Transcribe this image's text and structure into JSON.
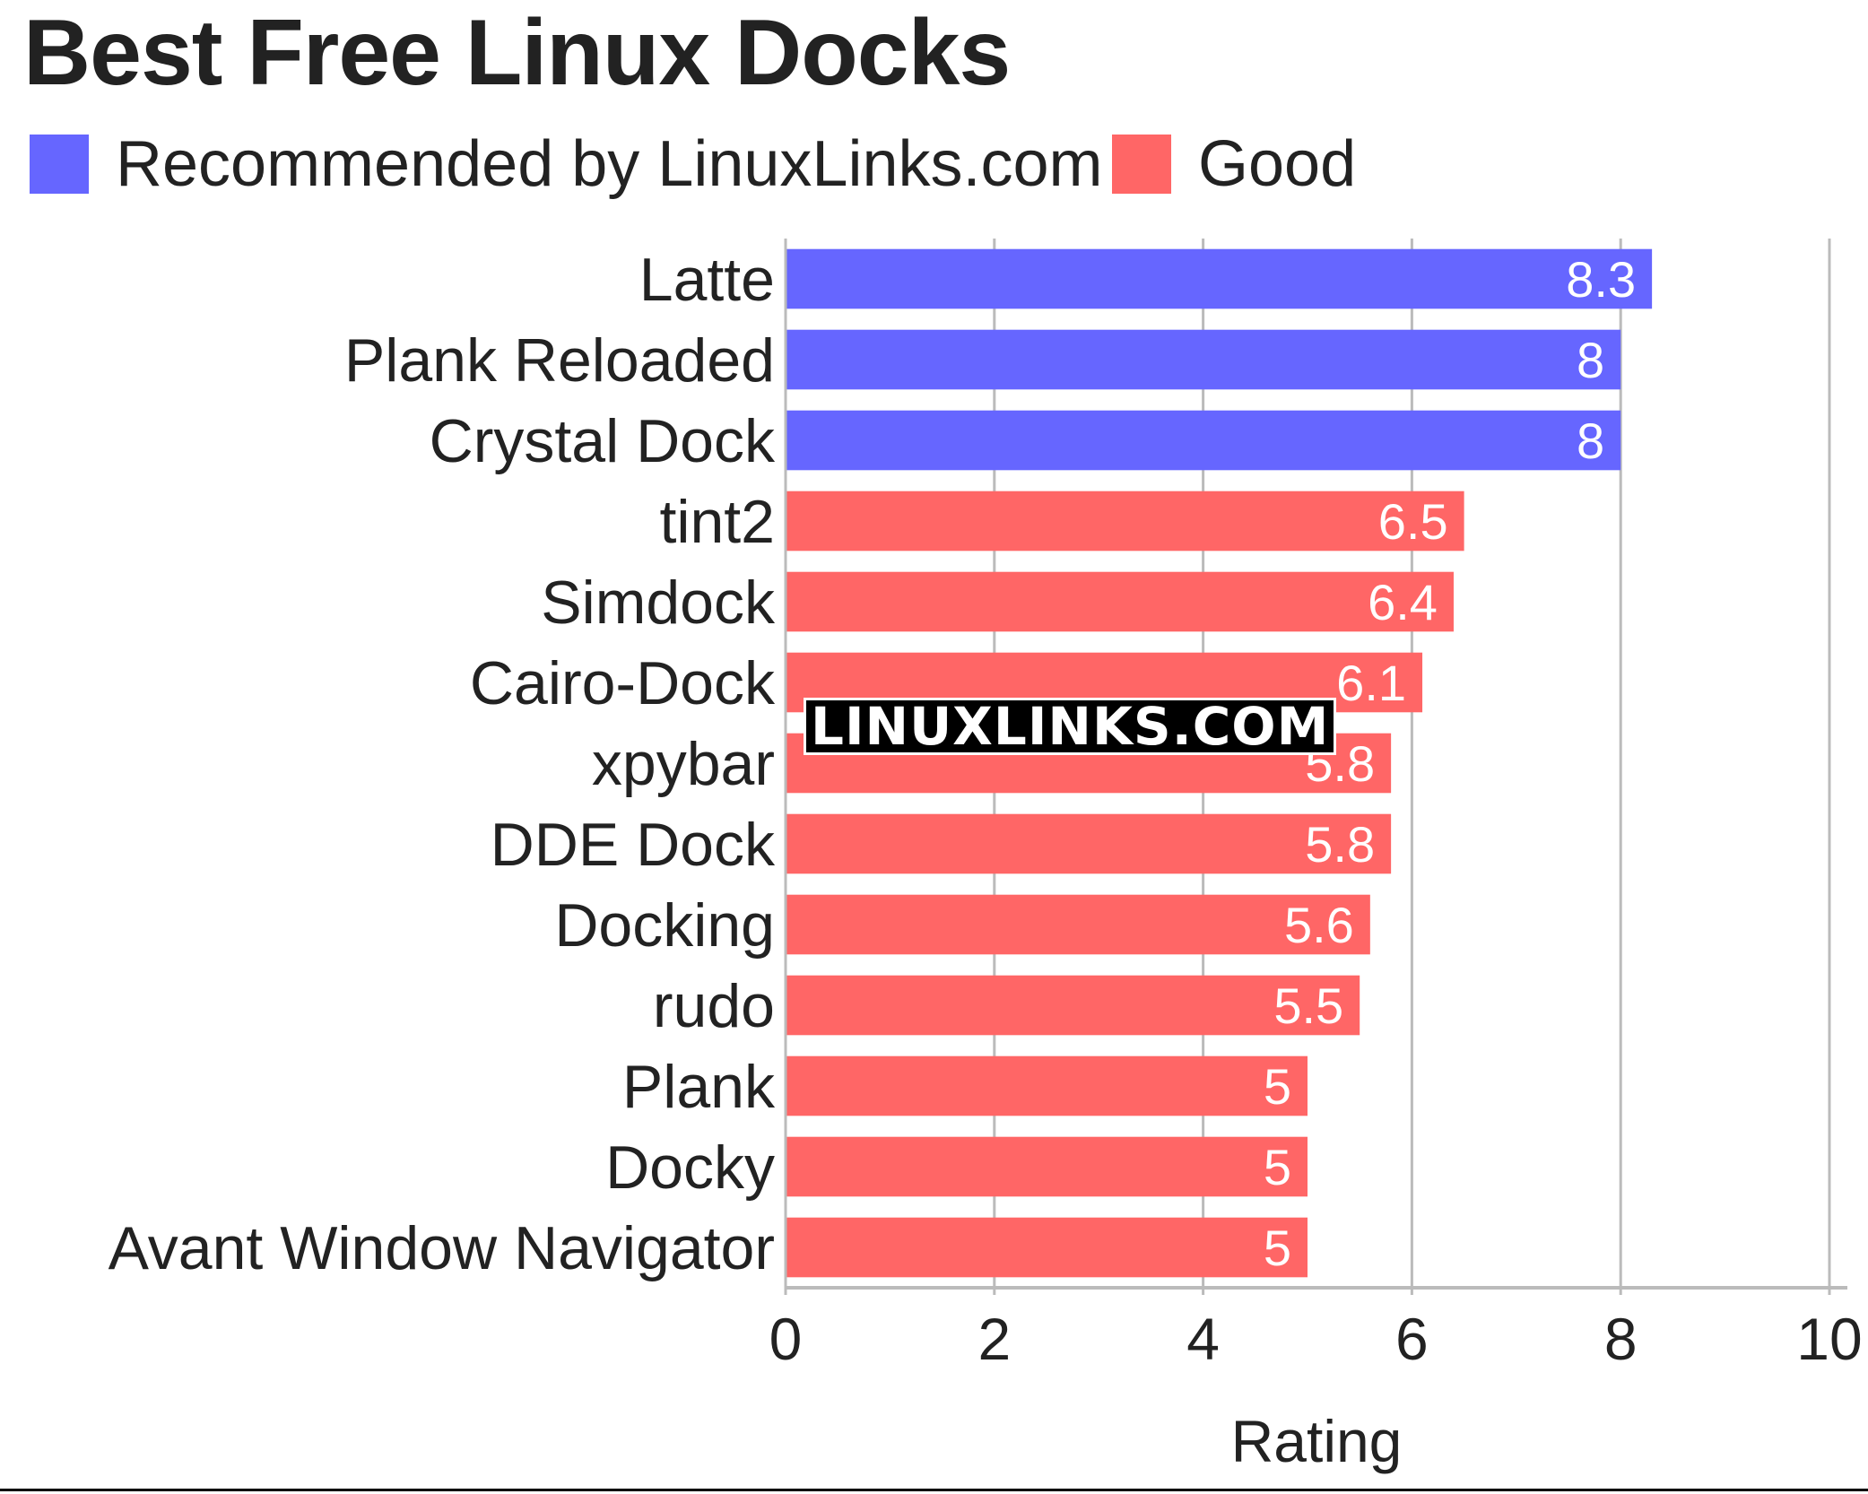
{
  "title": "Best Free Linux Docks",
  "watermark": "LINUXLINKS.COM",
  "colors": {
    "recommended": "#6666ff",
    "good": "#ff6666",
    "grid": "#bbbbbb",
    "text": "#222222"
  },
  "legend": [
    {
      "label": "Recommended by LinuxLinks.com",
      "color": "#6666ff"
    },
    {
      "label": "Good",
      "color": "#ff6666"
    }
  ],
  "chart_data": {
    "type": "bar",
    "orientation": "horizontal",
    "title": "Best Free Linux Docks",
    "xlabel": "Rating",
    "ylabel": "",
    "xlim": [
      0,
      10
    ],
    "xticks": [
      "0",
      "2",
      "4",
      "6",
      "8",
      "10"
    ],
    "grid": true,
    "legend_position": "top-left",
    "categories": [
      "Latte",
      "Plank Reloaded",
      "Crystal Dock",
      "tint2",
      "Simdock",
      "Cairo-Dock",
      "xpybar",
      "DDE Dock",
      "Docking",
      "rudo",
      "Plank",
      "Docky",
      "Avant Window Navigator"
    ],
    "values": [
      8.3,
      8,
      8,
      6.5,
      6.4,
      6.1,
      5.8,
      5.8,
      5.6,
      5.5,
      5,
      5,
      5
    ],
    "value_labels": [
      "8.3",
      "8",
      "8",
      "6.5",
      "6.4",
      "6.1",
      "5.8",
      "5.8",
      "5.6",
      "5.5",
      "5",
      "5",
      "5"
    ],
    "groups": [
      "Recommended by LinuxLinks.com",
      "Recommended by LinuxLinks.com",
      "Recommended by LinuxLinks.com",
      "Good",
      "Good",
      "Good",
      "Good",
      "Good",
      "Good",
      "Good",
      "Good",
      "Good",
      "Good"
    ]
  }
}
